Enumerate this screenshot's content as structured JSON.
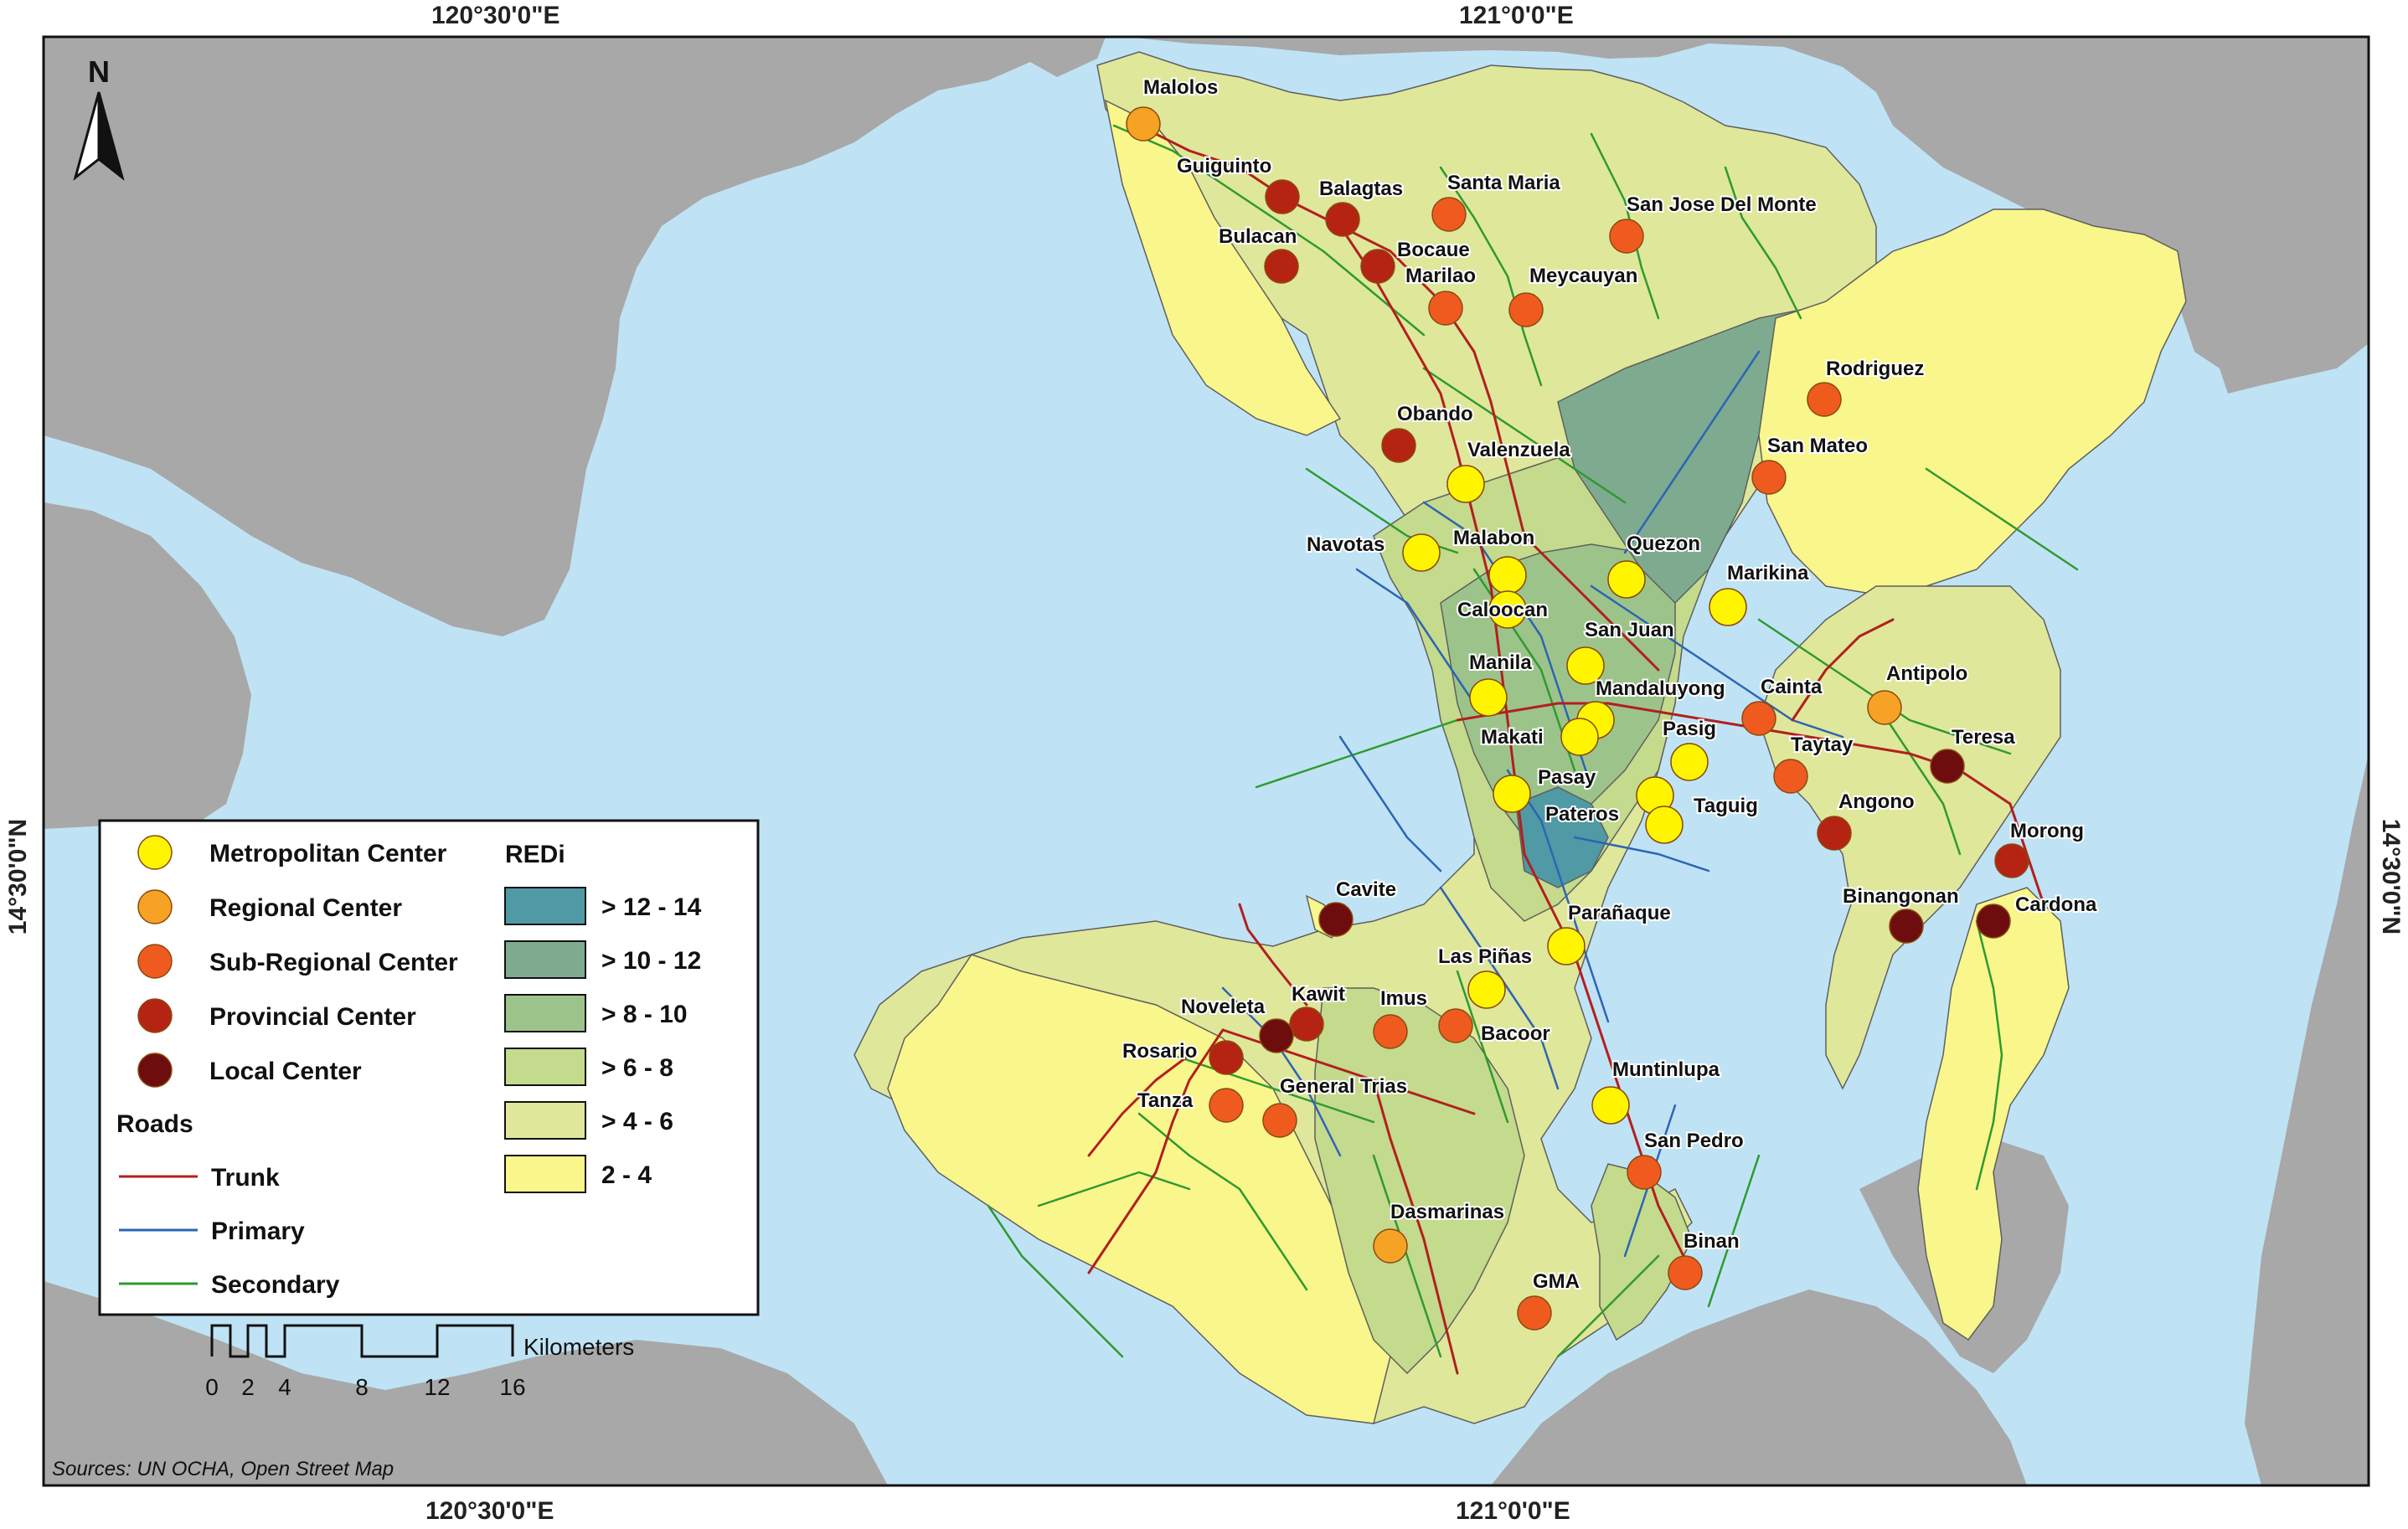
{
  "graticule": {
    "top_left": "120°30'0\"E",
    "top_right": "121°0'0\"E",
    "bottom_left": "120°30'0\"E",
    "bottom_right": "121°0'0\"E",
    "left": "14°30'0\"N",
    "right": "14°30'0\"N"
  },
  "north_arrow": {
    "label": "N"
  },
  "colors": {
    "sea": "#bfe3f5",
    "land_outside": "#a8a8a8",
    "redi_12_14": "#4f9aa4",
    "redi_10_12": "#7eab8f",
    "redi_8_10": "#9cc48a",
    "redi_6_8": "#c4da8c",
    "redi_4_6": "#dfe79a",
    "redi_2_4": "#f9f68b",
    "metropolitan": "#fff500",
    "regional": "#f6a224",
    "sub_regional": "#ef5b1f",
    "provincial": "#b52412",
    "local": "#6e0d0d",
    "trunk": "#b21f1f",
    "primary": "#2e64b4",
    "secondary": "#2f9a2f"
  },
  "centers": [
    {
      "name": "Malolos",
      "type": "regional"
    },
    {
      "name": "Guiguinto",
      "type": "provincial"
    },
    {
      "name": "Balagtas",
      "type": "provincial"
    },
    {
      "name": "Santa Maria",
      "type": "sub_regional"
    },
    {
      "name": "San Jose Del Monte",
      "type": "sub_regional"
    },
    {
      "name": "Bulacan",
      "type": "provincial"
    },
    {
      "name": "Bocaue",
      "type": "provincial"
    },
    {
      "name": "Marilao",
      "type": "sub_regional"
    },
    {
      "name": "Meycauyan",
      "type": "sub_regional"
    },
    {
      "name": "Rodriguez",
      "type": "sub_regional"
    },
    {
      "name": "Obando",
      "type": "provincial"
    },
    {
      "name": "San Mateo",
      "type": "sub_regional"
    },
    {
      "name": "Valenzuela",
      "type": "metropolitan"
    },
    {
      "name": "Navotas",
      "type": "metropolitan"
    },
    {
      "name": "Malabon",
      "type": "metropolitan"
    },
    {
      "name": "Quezon",
      "type": "metropolitan"
    },
    {
      "name": "Marikina",
      "type": "metropolitan"
    },
    {
      "name": "Caloocan",
      "type": "metropolitan"
    },
    {
      "name": "San Juan",
      "type": "metropolitan"
    },
    {
      "name": "Manila",
      "type": "metropolitan"
    },
    {
      "name": "Mandaluyong",
      "type": "metropolitan"
    },
    {
      "name": "Cainta",
      "type": "sub_regional"
    },
    {
      "name": "Antipolo",
      "type": "regional"
    },
    {
      "name": "Makati",
      "type": "metropolitan"
    },
    {
      "name": "Pasig",
      "type": "metropolitan"
    },
    {
      "name": "Taytay",
      "type": "sub_regional"
    },
    {
      "name": "Teresa",
      "type": "local"
    },
    {
      "name": "Pasay",
      "type": "metropolitan"
    },
    {
      "name": "Pateros",
      "type": "metropolitan"
    },
    {
      "name": "Taguig",
      "type": "metropolitan"
    },
    {
      "name": "Angono",
      "type": "provincial"
    },
    {
      "name": "Morong",
      "type": "provincial"
    },
    {
      "name": "Cavite",
      "type": "local"
    },
    {
      "name": "Parañaque",
      "type": "metropolitan"
    },
    {
      "name": "Binangonan",
      "type": "local"
    },
    {
      "name": "Cardona",
      "type": "local"
    },
    {
      "name": "Las Piñas",
      "type": "metropolitan"
    },
    {
      "name": "Kawit",
      "type": "provincial"
    },
    {
      "name": "Imus",
      "type": "sub_regional"
    },
    {
      "name": "Noveleta",
      "type": "local"
    },
    {
      "name": "Bacoor",
      "type": "sub_regional"
    },
    {
      "name": "Rosario",
      "type": "provincial"
    },
    {
      "name": "Muntinlupa",
      "type": "metropolitan"
    },
    {
      "name": "Tanza",
      "type": "sub_regional"
    },
    {
      "name": "General Trias",
      "type": "sub_regional"
    },
    {
      "name": "San Pedro",
      "type": "sub_regional"
    },
    {
      "name": "Dasmarinas",
      "type": "regional"
    },
    {
      "name": "Binan",
      "type": "sub_regional"
    },
    {
      "name": "GMA",
      "type": "sub_regional"
    }
  ],
  "legend": {
    "center_types": [
      {
        "key": "metropolitan",
        "label": "Metropolitan Center"
      },
      {
        "key": "regional",
        "label": "Regional Center"
      },
      {
        "key": "sub_regional",
        "label": "Sub-Regional Center"
      },
      {
        "key": "provincial",
        "label": "Provincial Center"
      },
      {
        "key": "local",
        "label": "Local Center"
      }
    ],
    "redi_title": "REDi",
    "redi_classes": [
      {
        "key": "redi_12_14",
        "label": "> 12 - 14"
      },
      {
        "key": "redi_10_12",
        "label": "> 10 - 12"
      },
      {
        "key": "redi_8_10",
        "label": "> 8 - 10"
      },
      {
        "key": "redi_6_8",
        "label": "> 6 - 8"
      },
      {
        "key": "redi_4_6",
        "label": "> 4 - 6"
      },
      {
        "key": "redi_2_4",
        "label": "2 - 4"
      }
    ],
    "roads_title": "Roads",
    "roads": [
      {
        "key": "trunk",
        "label": "Trunk"
      },
      {
        "key": "primary",
        "label": "Primary"
      },
      {
        "key": "secondary",
        "label": "Secondary"
      }
    ]
  },
  "scale_bar": {
    "unit": "Kilometers",
    "ticks": [
      "0",
      "2",
      "4",
      "8",
      "12",
      "16"
    ]
  },
  "source": "Sources: UN OCHA, Open Street Map"
}
